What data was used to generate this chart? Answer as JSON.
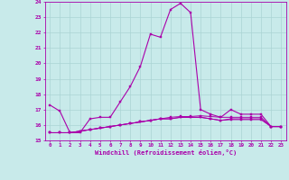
{
  "xlabel": "Windchill (Refroidissement éolien,°C)",
  "background_color": "#c8eaea",
  "grid_color": "#aad4d4",
  "line_color": "#aa00aa",
  "ylim": [
    15,
    24
  ],
  "xlim": [
    -0.5,
    23.5
  ],
  "yticks": [
    15,
    16,
    17,
    18,
    19,
    20,
    21,
    22,
    23,
    24
  ],
  "xticks": [
    0,
    1,
    2,
    3,
    4,
    5,
    6,
    7,
    8,
    9,
    10,
    11,
    12,
    13,
    14,
    15,
    16,
    17,
    18,
    19,
    20,
    21,
    22,
    23
  ],
  "series": [
    [
      17.3,
      16.9,
      15.5,
      15.5,
      16.4,
      16.5,
      16.5,
      17.5,
      18.5,
      19.8,
      21.9,
      21.7,
      23.5,
      23.9,
      23.3,
      17.0,
      16.7,
      16.5,
      17.0,
      16.7,
      16.7,
      16.7,
      15.9,
      15.9
    ],
    [
      15.5,
      15.5,
      15.5,
      15.6,
      15.7,
      15.8,
      15.9,
      16.0,
      16.1,
      16.2,
      16.3,
      16.4,
      16.5,
      16.55,
      16.55,
      16.6,
      16.55,
      16.5,
      16.5,
      16.5,
      16.5,
      16.5,
      15.9,
      15.9
    ],
    [
      15.5,
      15.5,
      15.5,
      15.6,
      15.7,
      15.8,
      15.9,
      16.0,
      16.1,
      16.2,
      16.3,
      16.4,
      16.4,
      16.5,
      16.5,
      16.5,
      16.4,
      16.3,
      16.4,
      16.4,
      16.4,
      16.4,
      15.9,
      15.9
    ],
    [
      15.5,
      15.5,
      15.5,
      15.6,
      15.7,
      15.8,
      15.9,
      16.0,
      16.1,
      16.2,
      16.3,
      16.4,
      16.4,
      16.5,
      16.5,
      16.5,
      16.4,
      16.3,
      16.35,
      16.35,
      16.35,
      16.35,
      15.9,
      15.9
    ]
  ]
}
